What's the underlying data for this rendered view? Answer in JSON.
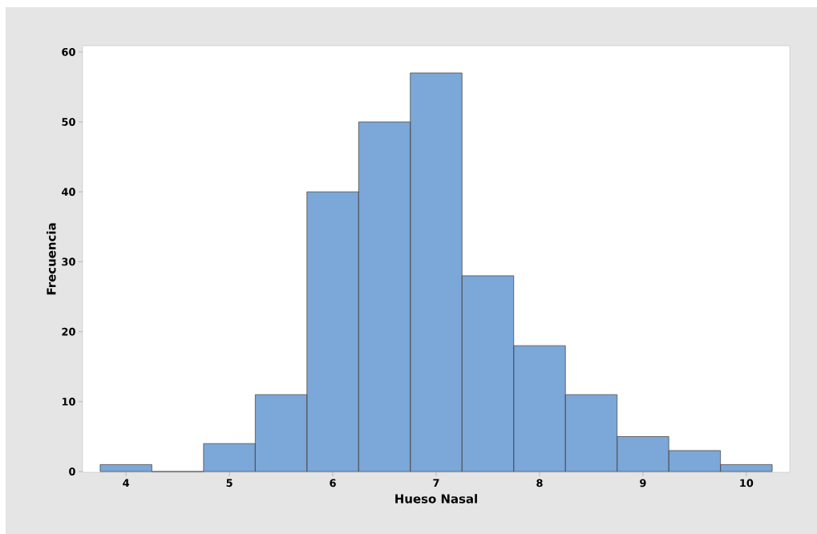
{
  "chart_data": {
    "type": "histogram",
    "xlabel": "Hueso Nasal",
    "ylabel": "Frecuencia",
    "bins": [
      3.75,
      4.25,
      4.75,
      5.25,
      5.75,
      6.25,
      6.75,
      7.25,
      7.75,
      8.25,
      8.75,
      9.25,
      9.75,
      10.25
    ],
    "values": [
      1,
      0,
      4,
      11,
      40,
      50,
      57,
      28,
      18,
      11,
      5,
      3,
      1
    ],
    "color": "#7ba7d9",
    "xlim": [
      3.58,
      10.42
    ],
    "ylim": [
      -0.1,
      60.9
    ],
    "xticks": [
      4,
      5,
      6,
      7,
      8,
      9,
      10
    ],
    "yticks": [
      0,
      10,
      20,
      30,
      40,
      50,
      60
    ],
    "grid": false
  }
}
